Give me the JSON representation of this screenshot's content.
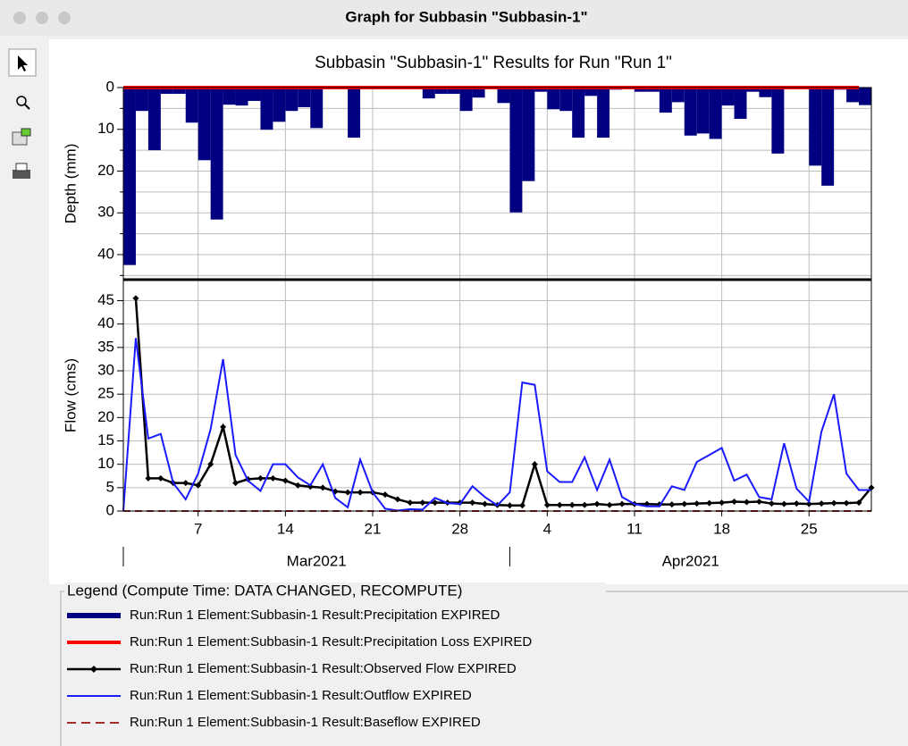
{
  "window": {
    "title": "Graph for Subbasin \"Subbasin-1\""
  },
  "chart_title": "Subbasin \"Subbasin-1\" Results for Run \"Run 1\"",
  "chart_data": [
    {
      "type": "bar",
      "ylabel": "Depth (mm)",
      "y_inverted": true,
      "x": [
        "2021-03-01",
        "2021-03-02",
        "2021-03-03",
        "2021-03-04",
        "2021-03-05",
        "2021-03-06",
        "2021-03-07",
        "2021-03-08",
        "2021-03-09",
        "2021-03-10",
        "2021-03-11",
        "2021-03-12",
        "2021-03-13",
        "2021-03-14",
        "2021-03-15",
        "2021-03-16",
        "2021-03-17",
        "2021-03-18",
        "2021-03-19",
        "2021-03-20",
        "2021-03-21",
        "2021-03-22",
        "2021-03-23",
        "2021-03-24",
        "2021-03-25",
        "2021-03-26",
        "2021-03-27",
        "2021-03-28",
        "2021-03-29",
        "2021-03-30",
        "2021-03-31",
        "2021-04-01",
        "2021-04-02",
        "2021-04-03",
        "2021-04-04",
        "2021-04-05",
        "2021-04-06",
        "2021-04-07",
        "2021-04-08",
        "2021-04-09",
        "2021-04-10",
        "2021-04-11",
        "2021-04-12",
        "2021-04-13",
        "2021-04-14",
        "2021-04-15",
        "2021-04-16",
        "2021-04-17",
        "2021-04-18",
        "2021-04-19",
        "2021-04-20",
        "2021-04-21",
        "2021-04-22",
        "2021-04-23",
        "2021-04-24",
        "2021-04-25",
        "2021-04-26",
        "2021-04-27",
        "2021-04-28",
        "2021-04-29"
      ],
      "xlim": [
        "2021-03-01",
        "2021-04-30"
      ],
      "ylim": [
        0,
        46
      ],
      "yticks": [
        0,
        10,
        20,
        30,
        40
      ],
      "yticks_minor": [
        5,
        15,
        25,
        35,
        45
      ],
      "grid": true,
      "series": [
        {
          "name": "Run:Run 1 Element:Subbasin-1 Result:Precipitation EXPIRED",
          "type": "bar",
          "color": "#000080",
          "values": [
            42.5,
            5.6,
            15,
            1.5,
            1.5,
            8.4,
            17.4,
            31.6,
            4.1,
            4.3,
            3.2,
            10.1,
            8.2,
            5.6,
            4.7,
            9.7,
            0,
            0,
            12,
            0,
            0.3,
            0.3,
            0.4,
            0,
            2.6,
            1.5,
            1.5,
            5.6,
            2.4,
            0,
            3.7,
            29.9,
            22.4,
            1,
            5.2,
            5.6,
            12,
            2,
            12,
            0.5,
            0,
            1,
            1,
            6,
            3.5,
            11.5,
            11,
            12.3,
            4.3,
            7.5,
            1,
            2.3,
            15.8,
            0,
            0,
            18.7,
            23.5,
            0.5,
            3.5,
            4.2
          ]
        },
        {
          "name": "Run:Run 1 Element:Subbasin-1 Result:Precipitation Loss EXPIRED",
          "type": "line",
          "color": "#ff0000",
          "width": 4,
          "values": [
            0,
            0,
            0,
            0,
            0,
            0,
            0,
            0,
            0,
            0,
            0,
            0,
            0,
            0,
            0,
            0,
            0,
            0,
            0,
            0,
            0,
            0,
            0,
            0,
            0,
            0,
            0,
            0,
            0,
            0,
            0,
            0,
            0,
            0,
            0,
            0,
            0,
            0,
            0,
            0,
            0,
            0,
            0,
            0,
            0,
            0,
            0,
            0,
            0,
            0,
            0,
            0,
            0,
            0,
            0,
            0,
            0,
            0,
            0,
            0
          ]
        }
      ]
    },
    {
      "type": "line",
      "ylabel": "Flow (cms)",
      "x": [
        "2021-03-01",
        "2021-03-02",
        "2021-03-03",
        "2021-03-04",
        "2021-03-05",
        "2021-03-06",
        "2021-03-07",
        "2021-03-08",
        "2021-03-09",
        "2021-03-10",
        "2021-03-11",
        "2021-03-12",
        "2021-03-13",
        "2021-03-14",
        "2021-03-15",
        "2021-03-16",
        "2021-03-17",
        "2021-03-18",
        "2021-03-19",
        "2021-03-20",
        "2021-03-21",
        "2021-03-22",
        "2021-03-23",
        "2021-03-24",
        "2021-03-25",
        "2021-03-26",
        "2021-03-27",
        "2021-03-28",
        "2021-03-29",
        "2021-03-30",
        "2021-03-31",
        "2021-04-01",
        "2021-04-02",
        "2021-04-03",
        "2021-04-04",
        "2021-04-05",
        "2021-04-06",
        "2021-04-07",
        "2021-04-08",
        "2021-04-09",
        "2021-04-10",
        "2021-04-11",
        "2021-04-12",
        "2021-04-13",
        "2021-04-14",
        "2021-04-15",
        "2021-04-16",
        "2021-04-17",
        "2021-04-18",
        "2021-04-19",
        "2021-04-20",
        "2021-04-21",
        "2021-04-22",
        "2021-04-23",
        "2021-04-24",
        "2021-04-25",
        "2021-04-26",
        "2021-04-27",
        "2021-04-28",
        "2021-04-29",
        "2021-04-30"
      ],
      "xlim": [
        "2021-03-01",
        "2021-04-30"
      ],
      "xticks": [
        {
          "value": "2021-03-07",
          "label": "7"
        },
        {
          "value": "2021-03-14",
          "label": "14"
        },
        {
          "value": "2021-03-21",
          "label": "21"
        },
        {
          "value": "2021-03-28",
          "label": "28"
        },
        {
          "value": "2021-04-04",
          "label": "4"
        },
        {
          "value": "2021-04-11",
          "label": "11"
        },
        {
          "value": "2021-04-18",
          "label": "18"
        },
        {
          "value": "2021-04-25",
          "label": "25"
        }
      ],
      "months": [
        {
          "value": "2021-03-01",
          "label": "Mar2021"
        },
        {
          "value": "2021-04-01",
          "label": "Apr2021"
        }
      ],
      "ylim": [
        0,
        49.5
      ],
      "yticks": [
        0,
        5,
        10,
        15,
        20,
        25,
        30,
        35,
        40,
        45
      ],
      "grid": true,
      "series": [
        {
          "name": "Run:Run 1 Element:Subbasin-1 Result:Observed Flow EXPIRED",
          "color": "#000000",
          "width": 2.5,
          "marker": "diamond",
          "values": [
            null,
            45.5,
            7,
            7,
            6,
            6,
            5.5,
            10,
            18,
            6,
            6.8,
            7,
            7,
            6.5,
            5.5,
            5.2,
            5,
            4.2,
            4,
            4,
            4,
            3.5,
            2.5,
            1.8,
            1.8,
            1.8,
            1.8,
            1.8,
            1.8,
            1.5,
            1.3,
            1.2,
            1.2,
            10,
            1.3,
            1.3,
            1.3,
            1.3,
            1.5,
            1.3,
            1.5,
            1.5,
            1.5,
            1.4,
            1.4,
            1.5,
            1.6,
            1.7,
            1.8,
            2,
            1.9,
            2,
            1.6,
            1.5,
            1.6,
            1.5,
            1.6,
            1.7,
            1.7,
            1.8,
            5
          ]
        },
        {
          "name": "Run:Run 1 Element:Subbasin-1 Result:Outflow EXPIRED",
          "color": "#1a1aff",
          "width": 2,
          "values": [
            0,
            37,
            15.5,
            16.5,
            6,
            2.5,
            8,
            17.5,
            32.5,
            12,
            6.5,
            4.3,
            10,
            10,
            7.2,
            5.5,
            10,
            2.8,
            0.8,
            11,
            4,
            0.5,
            0.1,
            0.4,
            0.3,
            2.8,
            1.7,
            1.5,
            5.3,
            3,
            1.2,
            4,
            27.5,
            27,
            8.5,
            6.2,
            6.2,
            11.5,
            4.5,
            11,
            3,
            1.5,
            1,
            1,
            5.3,
            4.5,
            10.5,
            12,
            13.5,
            6.5,
            7.8,
            3,
            2.5,
            14.5,
            4.8,
            2,
            17,
            25,
            8,
            4.5,
            4.5
          ]
        },
        {
          "name": "Run:Run 1 Element:Subbasin-1 Result:Baseflow EXPIRED",
          "color": "#9b2d2d",
          "width": 2,
          "line_style": "dashed",
          "values": [
            0,
            0,
            0,
            0,
            0,
            0,
            0,
            0,
            0,
            0,
            0,
            0,
            0,
            0,
            0,
            0,
            0,
            0,
            0,
            0,
            0,
            0,
            0,
            0,
            0,
            0,
            0,
            0,
            0,
            0,
            0,
            0,
            0,
            0,
            0,
            0,
            0,
            0,
            0,
            0,
            0,
            0,
            0,
            0,
            0,
            0,
            0,
            0,
            0,
            0,
            0,
            0,
            0,
            0,
            0,
            0,
            0,
            0,
            0,
            0,
            0
          ]
        }
      ]
    }
  ],
  "legend": {
    "title": "Legend (Compute Time: DATA CHANGED, RECOMPUTE)"
  }
}
